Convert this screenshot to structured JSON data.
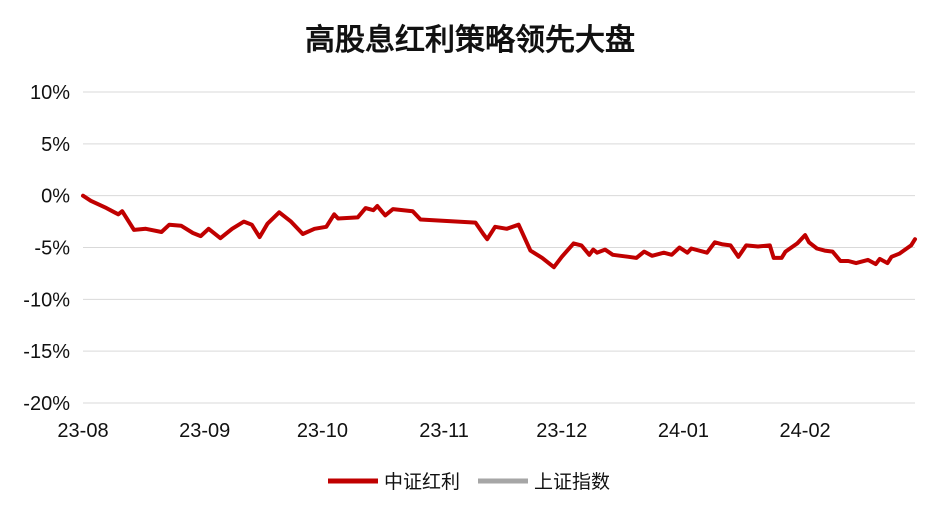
{
  "chart_data": {
    "type": "line",
    "title": "高股息红利策略领先大盘",
    "xlabel": "",
    "ylabel": "",
    "x_ticks": [
      "23-08",
      "23-09",
      "23-10",
      "23-11",
      "23-12",
      "24-01",
      "24-02"
    ],
    "y_ticks": [
      "10%",
      "5%",
      "0%",
      "-5%",
      "-10%",
      "-15%",
      "-20%"
    ],
    "y_tick_values": [
      10,
      5,
      0,
      -5,
      -10,
      -15,
      -20
    ],
    "ylim": [
      -20,
      10
    ],
    "xlim": [
      "2023-08-01",
      "2024-02-29"
    ],
    "grid": "horizontal",
    "legend_position": "bottom",
    "series": [
      {
        "name": "中证红利",
        "color": "#C00000",
        "points": [
          [
            "2023-08-01",
            0
          ],
          [
            "2023-08-03",
            -0.5
          ],
          [
            "2023-08-07",
            -1.2
          ],
          [
            "2023-08-09",
            -1.6
          ],
          [
            "2023-08-10",
            -1.8
          ],
          [
            "2023-08-11",
            -1.5
          ],
          [
            "2023-08-14",
            -3.3
          ],
          [
            "2023-08-17",
            -3.2
          ],
          [
            "2023-08-21",
            -3.5
          ],
          [
            "2023-08-23",
            -2.8
          ],
          [
            "2023-08-26",
            -2.9
          ],
          [
            "2023-08-29",
            -3.6
          ],
          [
            "2023-08-31",
            -3.9
          ],
          [
            "2023-09-02",
            -3.2
          ],
          [
            "2023-09-05",
            -4.1
          ],
          [
            "2023-09-08",
            -3.2
          ],
          [
            "2023-09-11",
            -2.5
          ],
          [
            "2023-09-13",
            -2.8
          ],
          [
            "2023-09-15",
            -4.0
          ],
          [
            "2023-09-17",
            -2.7
          ],
          [
            "2023-09-20",
            -1.6
          ],
          [
            "2023-09-23",
            -2.5
          ],
          [
            "2023-09-26",
            -3.7
          ],
          [
            "2023-09-29",
            -3.2
          ],
          [
            "2023-10-02",
            -3.0
          ],
          [
            "2023-10-04",
            -1.8
          ],
          [
            "2023-10-05",
            -2.2
          ],
          [
            "2023-10-10",
            -2.1
          ],
          [
            "2023-10-12",
            -1.2
          ],
          [
            "2023-10-14",
            -1.4
          ],
          [
            "2023-10-15",
            -1.0
          ],
          [
            "2023-10-17",
            -1.9
          ],
          [
            "2023-10-19",
            -1.3
          ],
          [
            "2023-10-24",
            -1.5
          ],
          [
            "2023-10-26",
            -2.3
          ],
          [
            "2023-11-09",
            -2.6
          ],
          [
            "2023-11-11",
            -3.7
          ],
          [
            "2023-11-12",
            -4.2
          ],
          [
            "2023-11-14",
            -3.0
          ],
          [
            "2023-11-17",
            -3.2
          ],
          [
            "2023-11-20",
            -2.8
          ],
          [
            "2023-11-23",
            -5.3
          ],
          [
            "2023-11-26",
            -6.0
          ],
          [
            "2023-11-29",
            -6.9
          ],
          [
            "2023-12-01",
            -5.9
          ],
          [
            "2023-12-04",
            -4.6
          ],
          [
            "2023-12-06",
            -4.8
          ],
          [
            "2023-12-08",
            -5.7
          ],
          [
            "2023-12-09",
            -5.2
          ],
          [
            "2023-12-10",
            -5.5
          ],
          [
            "2023-12-12",
            -5.2
          ],
          [
            "2023-12-14",
            -5.7
          ],
          [
            "2023-12-18",
            -5.9
          ],
          [
            "2023-12-20",
            -6.0
          ],
          [
            "2023-12-22",
            -5.4
          ],
          [
            "2023-12-24",
            -5.8
          ],
          [
            "2023-12-27",
            -5.5
          ],
          [
            "2023-12-29",
            -5.7
          ],
          [
            "2023-12-31",
            -5.0
          ],
          [
            "2024-01-02",
            -5.5
          ],
          [
            "2024-01-03",
            -5.1
          ],
          [
            "2024-01-07",
            -5.5
          ],
          [
            "2024-01-09",
            -4.5
          ],
          [
            "2024-01-11",
            -4.7
          ],
          [
            "2024-01-13",
            -4.8
          ],
          [
            "2024-01-15",
            -5.9
          ],
          [
            "2024-01-17",
            -4.8
          ],
          [
            "2024-01-20",
            -4.9
          ],
          [
            "2024-01-23",
            -4.8
          ],
          [
            "2024-01-24",
            -6.0
          ],
          [
            "2024-01-26",
            -6.0
          ],
          [
            "2024-01-27",
            -5.4
          ],
          [
            "2024-01-30",
            -4.6
          ],
          [
            "2024-02-01",
            -3.8
          ],
          [
            "2024-02-02",
            -4.5
          ],
          [
            "2024-02-04",
            -5.1
          ],
          [
            "2024-02-06",
            -5.3
          ],
          [
            "2024-02-08",
            -5.4
          ],
          [
            "2024-02-10",
            -6.3
          ],
          [
            "2024-02-12",
            -6.3
          ],
          [
            "2024-02-14",
            -6.5
          ],
          [
            "2024-02-17",
            -6.2
          ],
          [
            "2024-02-19",
            -6.6
          ],
          [
            "2024-02-20",
            -6.1
          ],
          [
            "2024-02-22",
            -6.5
          ],
          [
            "2024-02-23",
            -5.9
          ],
          [
            "2024-02-25",
            -5.6
          ],
          [
            "2024-02-28",
            -4.8
          ],
          [
            "2024-02-29",
            -4.2
          ]
        ]
      },
      {
        "name": "上证指数",
        "color": "#A6A6A6",
        "points": []
      }
    ]
  }
}
